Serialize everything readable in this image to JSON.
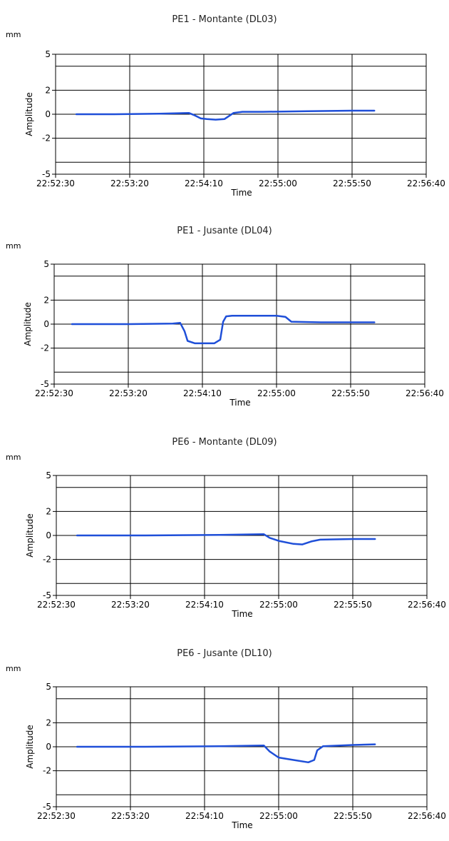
{
  "chart_data": [
    {
      "type": "line",
      "title": "PE1 - Montante (DL03)",
      "unit": "mm",
      "xlabel": "Time",
      "ylabel": "Amplitude",
      "xlim": [
        "22:52:30",
        "22:56:40"
      ],
      "ylim": [
        -5,
        5
      ],
      "xticks": [
        "22:52:30",
        "22:53:20",
        "22:54:10",
        "22:55:00",
        "22:55:50",
        "22:56:40"
      ],
      "yticks": [
        "5",
        "2",
        "0",
        "-2",
        "-5"
      ],
      "grid": true,
      "color": "#1f4fd8",
      "series": [
        {
          "x": [
            "22:52:44",
            "22:53:10",
            "22:53:40",
            "22:54:00",
            "22:54:04",
            "22:54:08",
            "22:54:12",
            "22:54:18",
            "22:54:24",
            "22:54:30",
            "22:54:36",
            "22:54:50",
            "22:55:20",
            "22:55:50",
            "22:56:05"
          ],
          "y": [
            0.0,
            0.0,
            0.05,
            0.1,
            -0.1,
            -0.35,
            -0.4,
            -0.45,
            -0.4,
            0.1,
            0.2,
            0.2,
            0.25,
            0.3,
            0.3
          ]
        }
      ]
    },
    {
      "type": "line",
      "title": "PE1 - Jusante (DL04)",
      "unit": "mm",
      "xlabel": "Time",
      "ylabel": "Amplitude",
      "xlim": [
        "22:52:30",
        "22:56:40"
      ],
      "ylim": [
        -5,
        5
      ],
      "xticks": [
        "22:52:30",
        "22:53:20",
        "22:54:10",
        "22:55:00",
        "22:55:50",
        "22:56:40"
      ],
      "yticks": [
        "5",
        "2",
        "0",
        "-2",
        "-5"
      ],
      "grid": true,
      "color": "#1f4fd8",
      "series": [
        {
          "x": [
            "22:52:42",
            "22:53:20",
            "22:53:50",
            "22:53:55",
            "22:53:58",
            "22:54:00",
            "22:54:05",
            "22:54:10",
            "22:54:18",
            "22:54:22",
            "22:54:24",
            "22:54:26",
            "22:54:30",
            "22:55:00",
            "22:55:06",
            "22:55:10",
            "22:55:30",
            "22:55:50",
            "22:56:06"
          ],
          "y": [
            0.0,
            0.0,
            0.05,
            0.1,
            -0.6,
            -1.4,
            -1.6,
            -1.6,
            -1.6,
            -1.3,
            0.2,
            0.65,
            0.7,
            0.7,
            0.6,
            0.2,
            0.15,
            0.15,
            0.15
          ]
        }
      ]
    },
    {
      "type": "line",
      "title": "PE6 - Montante (DL09)",
      "unit": "mm",
      "xlabel": "Time",
      "ylabel": "Amplitude",
      "xlim": [
        "22:52:30",
        "22:56:40"
      ],
      "ylim": [
        -5,
        5
      ],
      "xticks": [
        "22:52:30",
        "22:53:20",
        "22:54:10",
        "22:55:00",
        "22:55:50",
        "22:56:40"
      ],
      "yticks": [
        "5",
        "2",
        "0",
        "-2",
        "-5"
      ],
      "grid": true,
      "color": "#1f4fd8",
      "series": [
        {
          "x": [
            "22:52:44",
            "22:53:30",
            "22:54:20",
            "22:54:50",
            "22:54:54",
            "22:55:00",
            "22:55:10",
            "22:55:16",
            "22:55:22",
            "22:55:28",
            "22:55:50",
            "22:56:05"
          ],
          "y": [
            0.0,
            0.0,
            0.05,
            0.1,
            -0.2,
            -0.45,
            -0.7,
            -0.75,
            -0.5,
            -0.35,
            -0.3,
            -0.3
          ]
        }
      ]
    },
    {
      "type": "line",
      "title": "PE6 - Jusante (DL10)",
      "unit": "mm",
      "xlabel": "Time",
      "ylabel": "Amplitude",
      "xlim": [
        "22:52:30",
        "22:56:40"
      ],
      "ylim": [
        -5,
        5
      ],
      "xticks": [
        "22:52:30",
        "22:53:20",
        "22:54:10",
        "22:55:00",
        "22:55:50",
        "22:56:40"
      ],
      "yticks": [
        "5",
        "2",
        "0",
        "-2",
        "-5"
      ],
      "grid": true,
      "color": "#1f4fd8",
      "series": [
        {
          "x": [
            "22:52:44",
            "22:53:30",
            "22:54:20",
            "22:54:50",
            "22:54:54",
            "22:55:00",
            "22:55:10",
            "22:55:20",
            "22:55:24",
            "22:55:26",
            "22:55:30",
            "22:55:50",
            "22:56:05"
          ],
          "y": [
            0.0,
            0.0,
            0.05,
            0.1,
            -0.4,
            -0.9,
            -1.1,
            -1.3,
            -1.1,
            -0.3,
            0.05,
            0.15,
            0.2
          ]
        }
      ]
    }
  ]
}
